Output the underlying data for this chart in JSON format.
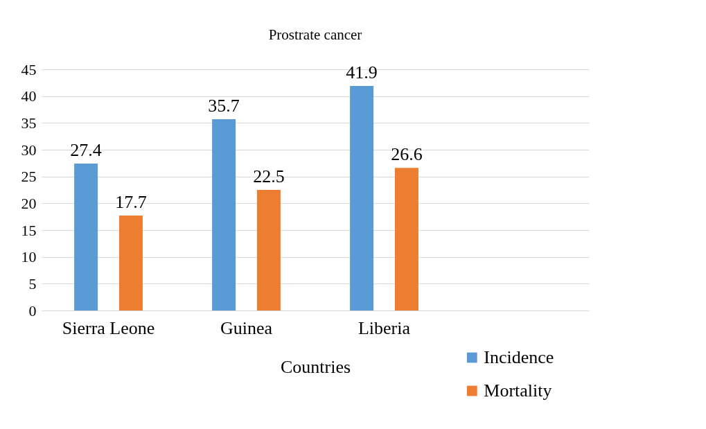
{
  "chart_data": {
    "type": "bar",
    "title": "Prostrate cancer",
    "xlabel": "Countries",
    "categories": [
      "Sierra Leone",
      "Guinea",
      "Liberia",
      null
    ],
    "series": [
      {
        "name": "Incidence",
        "color": "#5b9bd5",
        "values": [
          27.4,
          35.7,
          41.9,
          null
        ]
      },
      {
        "name": "Mortality",
        "color": "#ed7d31",
        "values": [
          17.7,
          22.5,
          26.6,
          null
        ]
      }
    ],
    "ylim": [
      0,
      45
    ],
    "yticks": [
      0,
      5,
      10,
      15,
      20,
      25,
      30,
      35,
      40,
      45
    ],
    "grid": "y",
    "legend": "bottom right",
    "data_labels": true
  }
}
